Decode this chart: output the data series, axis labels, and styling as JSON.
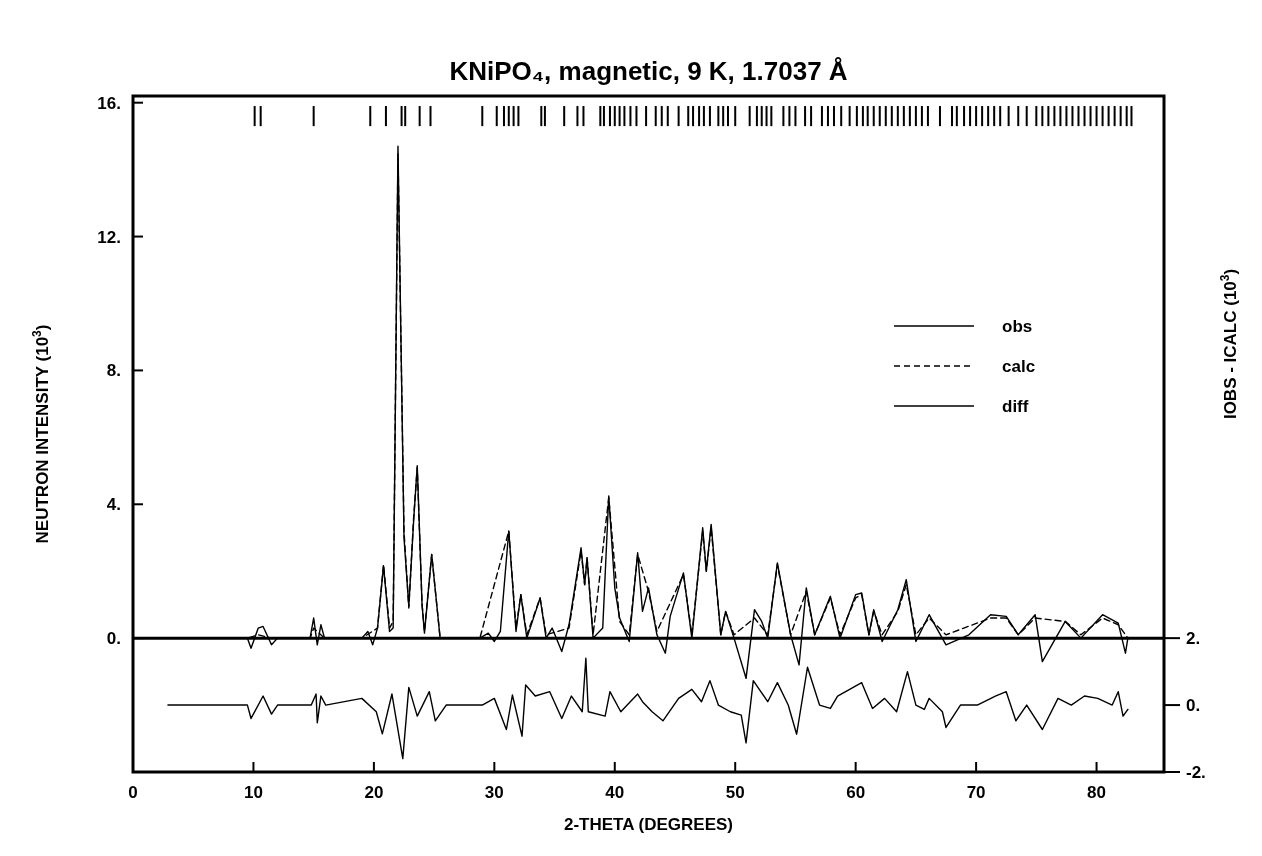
{
  "chart_data": {
    "type": "line",
    "title": "KNiPO₄, magnetic, 9 K, 1.7037 Å",
    "xlabel": "2-THETA (DEGREES)",
    "ylabel": "NEUTRON INTENSITY (10$^{3}$)",
    "y2label": "IOBS - ICALC (10$^{3}$)",
    "xlim": [
      0,
      85.6
    ],
    "xticks": [
      0,
      10,
      20,
      30,
      40,
      50,
      60,
      70,
      80
    ],
    "ylim": [
      -4,
      16.2
    ],
    "yticks": [
      {
        "value": 0,
        "label": "0."
      },
      {
        "value": 4,
        "label": "4."
      },
      {
        "value": 8,
        "label": "8."
      },
      {
        "value": 12,
        "label": "12."
      },
      {
        "value": 16,
        "label": "16."
      }
    ],
    "y2lim": [
      -2,
      18.2
    ],
    "y2ticks": [
      {
        "value": -2,
        "label": "-2."
      },
      {
        "value": 0,
        "label": "0."
      },
      {
        "value": 2,
        "label": "2."
      }
    ],
    "legend": "top right",
    "ref_lines": [
      {
        "axis": "y",
        "value": 0
      }
    ],
    "series": [
      {
        "name": "obs",
        "color": "#000000",
        "line_style": "solid",
        "x": [
          3.0,
          9.5,
          9.8,
          10.4,
          10.8,
          11.5,
          12.0,
          14.7,
          15.0,
          15.3,
          15.6,
          15.9,
          19.0,
          19.5,
          19.9,
          20.3,
          20.8,
          21.3,
          21.6,
          22.0,
          22.5,
          22.9,
          23.3,
          23.6,
          24.0,
          24.2,
          24.8,
          25.5,
          28.8,
          29.5,
          30.0,
          30.5,
          31.2,
          31.8,
          32.2,
          32.7,
          33.8,
          34.3,
          34.8,
          35.6,
          36.2,
          37.2,
          37.5,
          37.7,
          38.2,
          39.0,
          39.5,
          40.0,
          40.4,
          41.2,
          41.9,
          42.3,
          42.8,
          43.5,
          44.2,
          44.6,
          45.7,
          46.4,
          47.3,
          47.6,
          48.0,
          48.8,
          49.2,
          49.9,
          50.9,
          51.6,
          52.2,
          52.7,
          53.5,
          54.6,
          55.3,
          55.9,
          56.6,
          57.9,
          58.7,
          60.0,
          60.5,
          61.1,
          61.5,
          62.2,
          63.5,
          64.2,
          65.0,
          66.1,
          67.5,
          69.4,
          71.2,
          72.5,
          73.5,
          74.9,
          75.5,
          77.4,
          78.7,
          80.5,
          81.8,
          82.4,
          82.6
        ],
        "values": [
          0,
          0,
          -0.3,
          0.3,
          0.35,
          -0.2,
          0,
          0,
          0.6,
          -0.2,
          0.4,
          0,
          0,
          0.2,
          -0.2,
          0.3,
          2.15,
          0.2,
          0.3,
          14.7,
          3.0,
          0.95,
          3.5,
          5.15,
          1.0,
          0.15,
          2.5,
          0,
          0,
          0.15,
          -0.1,
          0.2,
          3.2,
          0.2,
          1.3,
          0,
          1.2,
          0,
          0.3,
          -0.4,
          0.4,
          2.7,
          1.6,
          2.4,
          0,
          0.3,
          4.25,
          1.5,
          0.6,
          -0.1,
          2.55,
          0.8,
          1.5,
          0.1,
          -0.45,
          0.65,
          1.95,
          0,
          3.3,
          2.0,
          3.4,
          0.1,
          0.8,
          0,
          -1.2,
          0.85,
          0.5,
          0,
          2.25,
          0.1,
          -0.8,
          1.5,
          0.1,
          1.25,
          0,
          1.3,
          1.35,
          0.1,
          0.85,
          -0.1,
          0.85,
          1.75,
          -0.1,
          0.7,
          -0.2,
          0.1,
          0.7,
          0.65,
          0.1,
          0.7,
          -0.7,
          0.5,
          0,
          0.7,
          0.45,
          -0.45,
          0
        ]
      },
      {
        "name": "calc",
        "color": "#000000",
        "line_style": "dashed",
        "x": [
          3.0,
          9.5,
          10.4,
          11.5,
          14.7,
          15.0,
          15.9,
          19.0,
          20.3,
          20.8,
          21.3,
          21.6,
          22.0,
          22.5,
          22.9,
          23.3,
          23.6,
          24.0,
          24.2,
          24.8,
          25.5,
          28.8,
          31.2,
          31.8,
          32.2,
          32.7,
          33.8,
          34.3,
          36.2,
          37.2,
          37.5,
          37.7,
          38.2,
          39.5,
          40.4,
          41.2,
          41.9,
          42.8,
          43.5,
          45.7,
          46.4,
          47.3,
          47.6,
          48.0,
          48.8,
          49.2,
          49.9,
          51.6,
          52.7,
          53.5,
          54.6,
          55.9,
          56.6,
          57.9,
          58.7,
          60.0,
          60.5,
          61.1,
          61.5,
          62.2,
          63.5,
          64.2,
          65.0,
          66.1,
          67.5,
          71.2,
          72.5,
          73.5,
          74.9,
          77.4,
          78.7,
          80.5,
          81.8,
          82.6
        ],
        "values": [
          0,
          0,
          0.1,
          0,
          0,
          0.3,
          0,
          0,
          0.3,
          2.2,
          0.3,
          0.5,
          14.5,
          3.2,
          0.9,
          3.6,
          5.1,
          1.0,
          0.2,
          2.5,
          0,
          0,
          3.2,
          0.3,
          1.3,
          0.1,
          1.2,
          0.1,
          0.3,
          2.6,
          1.6,
          2.4,
          0.1,
          4.2,
          0.5,
          0.1,
          2.5,
          1.4,
          0.2,
          1.9,
          0.1,
          3.2,
          2.0,
          3.3,
          0.1,
          0.8,
          0.1,
          0.6,
          0.1,
          2.2,
          0.1,
          1.4,
          0.1,
          1.2,
          0.1,
          1.2,
          1.3,
          0.1,
          0.8,
          0.1,
          0.8,
          1.6,
          0.1,
          0.6,
          0.1,
          0.6,
          0.6,
          0.1,
          0.6,
          0.5,
          0.1,
          0.6,
          0.4,
          0
        ]
      },
      {
        "name": "diff",
        "color": "#000000",
        "line_style": "solid",
        "axis": "y2",
        "x": [
          2.9,
          9.5,
          9.8,
          10.8,
          11.5,
          12.0,
          14.8,
          15.2,
          15.3,
          15.6,
          16.0,
          19.0,
          20.2,
          20.7,
          21.5,
          22.4,
          22.9,
          23.6,
          24.6,
          25.1,
          26.0,
          29.0,
          30.0,
          31.0,
          31.5,
          32.3,
          32.6,
          33.4,
          34.6,
          35.6,
          36.4,
          37.3,
          37.6,
          37.8,
          39.2,
          39.6,
          40.5,
          41.9,
          42.3,
          43.1,
          44.0,
          45.3,
          46.4,
          47.2,
          47.9,
          48.6,
          49.6,
          50.5,
          50.9,
          51.5,
          52.7,
          53.5,
          54.4,
          55.1,
          56.0,
          57.0,
          57.9,
          58.5,
          60.5,
          61.4,
          62.4,
          63.4,
          64.3,
          65.0,
          65.7,
          66.1,
          67.2,
          67.5,
          68.7,
          70.1,
          71.6,
          72.5,
          73.3,
          74.2,
          75.5,
          76.8,
          77.9,
          79.0,
          80.1,
          81.3,
          81.8,
          82.2,
          82.6
        ],
        "values": [
          0,
          0,
          -0.4,
          0.27,
          -0.27,
          0,
          0,
          0.33,
          -0.53,
          0.27,
          0,
          0.2,
          -0.2,
          -0.86,
          0.33,
          -1.6,
          0.53,
          -0.33,
          0.4,
          -0.47,
          0,
          0,
          0.2,
          -0.73,
          0.3,
          -0.93,
          0.6,
          0.27,
          0.4,
          -0.4,
          0.27,
          -0.2,
          1.4,
          -0.2,
          -0.33,
          0.4,
          -0.2,
          0.33,
          0.1,
          -0.2,
          -0.47,
          0.2,
          0.47,
          0.1,
          0.73,
          0,
          -0.2,
          -0.3,
          -1.13,
          0.73,
          0.1,
          0.67,
          0,
          -0.87,
          1.13,
          0,
          -0.1,
          0.27,
          0.67,
          -0.1,
          0.2,
          -0.2,
          1.0,
          0,
          -0.13,
          0.2,
          -0.2,
          -0.67,
          0,
          0,
          0.27,
          0.4,
          -0.47,
          0,
          -0.73,
          0.2,
          0,
          0.27,
          0.2,
          0,
          0.4,
          -0.33,
          -0.13
        ]
      },
      {
        "type": "bar",
        "color": "#000000",
        "base": [
          15.3,
          15.3,
          15.3,
          15.3,
          15.3,
          15.3,
          15.3,
          15.3,
          15.3,
          15.3,
          15.3,
          15.3,
          15.3,
          15.3,
          15.3,
          15.3,
          15.3,
          15.3,
          15.3,
          15.3,
          15.3,
          15.3,
          15.3,
          15.3,
          15.3,
          15.3,
          15.3,
          15.3,
          15.3,
          15.3,
          15.3,
          15.3,
          15.3,
          15.3,
          15.3,
          15.3,
          15.3,
          15.3,
          15.3,
          15.3,
          15.3,
          15.3,
          15.3,
          15.3,
          15.3,
          15.3,
          15.3,
          15.3,
          15.3,
          15.3,
          15.3,
          15.3,
          15.3,
          15.3,
          15.3,
          15.3,
          15.3,
          15.3,
          15.3,
          15.3,
          15.3,
          15.3,
          15.3,
          15.3,
          15.3,
          15.3,
          15.3,
          15.3,
          15.3,
          15.3,
          15.3,
          15.3,
          15.3,
          15.3,
          15.3,
          15.3,
          15.3,
          15.3,
          15.3,
          15.3,
          15.3,
          15.3,
          15.3,
          15.3,
          15.3,
          15.3,
          15.3,
          15.3,
          15.3,
          15.3,
          15.3,
          15.3,
          15.3,
          15.3,
          15.3,
          15.3,
          15.3,
          15.3,
          15.3,
          15.3
        ],
        "x": [
          10.1,
          10.6,
          15.0,
          19.7,
          21.0,
          22.3,
          22.6,
          23.8,
          24.7,
          29.0,
          30.2,
          30.8,
          31.2,
          31.6,
          32.0,
          33.9,
          34.2,
          35.8,
          36.9,
          37.4,
          38.8,
          39.1,
          39.6,
          40.0,
          40.4,
          40.8,
          41.3,
          41.8,
          42.6,
          43.4,
          43.9,
          44.4,
          45.3,
          46.1,
          46.5,
          47.0,
          47.4,
          47.9,
          48.6,
          49.0,
          49.4,
          50.0,
          51.2,
          51.8,
          52.2,
          52.6,
          53.0,
          54.0,
          54.5,
          55.0,
          55.8,
          56.3,
          57.2,
          57.7,
          58.2,
          58.8,
          59.5,
          60.1,
          60.6,
          61.0,
          61.5,
          62.0,
          62.5,
          63.0,
          63.5,
          64.0,
          64.5,
          65.0,
          65.5,
          66.0,
          67.0,
          68.0,
          68.4,
          69.0,
          69.5,
          70.0,
          70.5,
          71.0,
          71.5,
          72.0,
          72.7,
          73.5,
          74.2,
          75.0,
          75.5,
          76.0,
          76.5,
          77.0,
          77.5,
          78.0,
          78.5,
          79.0,
          79.5,
          80.0,
          80.5,
          81.0,
          81.5,
          82.0,
          82.5,
          82.9
        ],
        "values": [
          0.6,
          0.6,
          0.6,
          0.6,
          0.6,
          0.6,
          0.6,
          0.6,
          0.6,
          0.6,
          0.6,
          0.6,
          0.6,
          0.6,
          0.6,
          0.6,
          0.6,
          0.6,
          0.6,
          0.6,
          0.6,
          0.6,
          0.6,
          0.6,
          0.6,
          0.6,
          0.6,
          0.6,
          0.6,
          0.6,
          0.6,
          0.6,
          0.6,
          0.6,
          0.6,
          0.6,
          0.6,
          0.6,
          0.6,
          0.6,
          0.6,
          0.6,
          0.6,
          0.6,
          0.6,
          0.6,
          0.6,
          0.6,
          0.6,
          0.6,
          0.6,
          0.6,
          0.6,
          0.6,
          0.6,
          0.6,
          0.6,
          0.6,
          0.6,
          0.6,
          0.6,
          0.6,
          0.6,
          0.6,
          0.6,
          0.6,
          0.6,
          0.6,
          0.6,
          0.6,
          0.6,
          0.6,
          0.6,
          0.6,
          0.6,
          0.6,
          0.6,
          0.6,
          0.6,
          0.6,
          0.6,
          0.6,
          0.6,
          0.6,
          0.6,
          0.6,
          0.6,
          0.6,
          0.6,
          0.6,
          0.6,
          0.6,
          0.6,
          0.6,
          0.6,
          0.6,
          0.6,
          0.6,
          0.6,
          0.6
        ]
      }
    ]
  }
}
